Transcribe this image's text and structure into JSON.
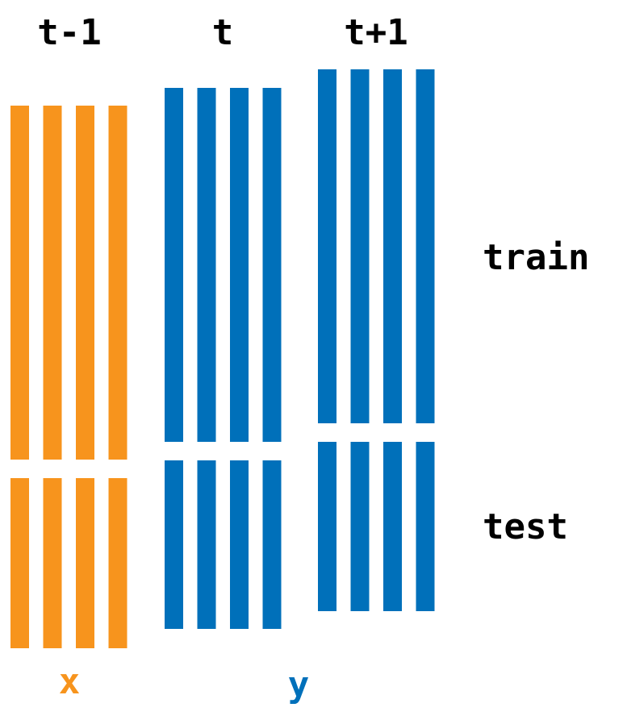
{
  "colors": {
    "input": "#F7941D",
    "target": "#0070BA",
    "text": "#000000",
    "background": "#FFFFFF"
  },
  "groups": [
    {
      "label": "t-1",
      "role": "input",
      "bars": 4
    },
    {
      "label": "t",
      "role": "target",
      "bars": 4
    },
    {
      "label": "t+1",
      "role": "target",
      "bars": 4
    }
  ],
  "splits": {
    "train_label": "train",
    "test_label": "test"
  },
  "bottom_labels": {
    "input": "x",
    "target": "y"
  }
}
